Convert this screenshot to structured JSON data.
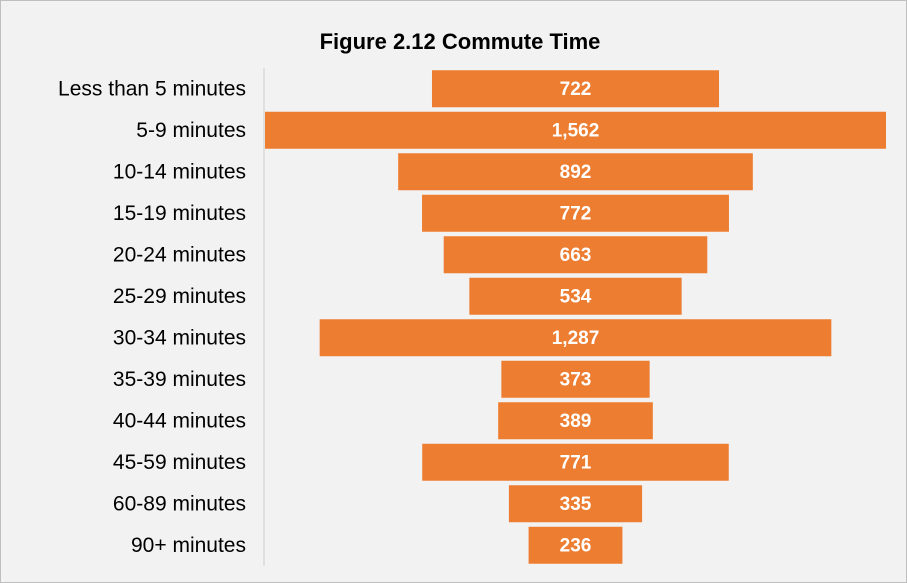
{
  "chart_data": {
    "type": "funnel",
    "title": "Figure 2.12 Commute Time",
    "categories": [
      "Less than 5 minutes",
      "5-9 minutes",
      "10-14 minutes",
      "15-19 minutes",
      "20-24 minutes",
      "25-29 minutes",
      "30-34 minutes",
      "35-39 minutes",
      "40-44 minutes",
      "45-59 minutes",
      "60-89 minutes",
      "90+ minutes"
    ],
    "values": [
      722,
      1562,
      892,
      772,
      663,
      534,
      1287,
      373,
      389,
      771,
      335,
      236
    ],
    "value_labels": [
      "722",
      "1,562",
      "892",
      "772",
      "663",
      "534",
      "1,287",
      "373",
      "389",
      "771",
      "335",
      "236"
    ],
    "color": "#ed7d31"
  }
}
